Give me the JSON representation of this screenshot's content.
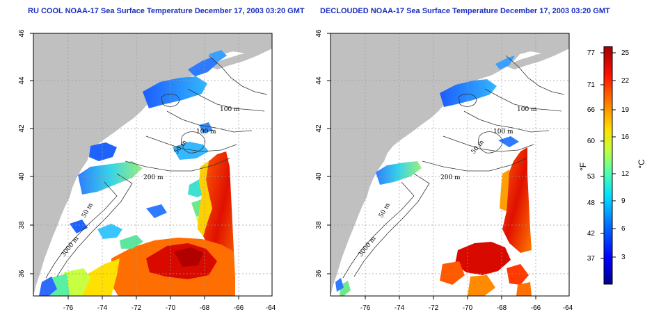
{
  "maps": [
    {
      "title": "RU COOL NOAA-17 Sea Surface Temperature December 17, 2003 03:20 GMT",
      "contour_labels": [
        "100 m",
        "100 m",
        "50 m",
        "200 m",
        "50 m",
        "3000 m"
      ]
    },
    {
      "title": "DECLOUDED NOAA-17 Sea Surface Temperature December 17, 2003 03:20 GMT",
      "contour_labels": [
        "100 m",
        "100 m",
        "50 m",
        "200 m",
        "50 m",
        "3000 m"
      ]
    }
  ],
  "axes": {
    "lon_ticks": [
      "-76",
      "-74",
      "-72",
      "-70",
      "-68",
      "-66",
      "-64"
    ],
    "lat_ticks": [
      "36",
      "38",
      "40",
      "42",
      "44",
      "46"
    ]
  },
  "colorbar": {
    "fahrenheit_ticks": [
      "77",
      "71",
      "66",
      "60",
      "53",
      "48",
      "42",
      "37"
    ],
    "celsius_ticks": [
      "25",
      "22",
      "19",
      "16",
      "12",
      "9",
      "6",
      "3"
    ],
    "fahrenheit_unit": "°F",
    "celsius_unit": "°C",
    "colors": [
      "#00008f",
      "#0000ff",
      "#0070ff",
      "#00dfff",
      "#50ffaf",
      "#bfff40",
      "#ffdf00",
      "#ff8000",
      "#ff1000",
      "#9f0000"
    ]
  },
  "colors": {
    "land": "#c0c0c0",
    "title": "#1a2fc0",
    "grid": "#9a9a9a"
  }
}
